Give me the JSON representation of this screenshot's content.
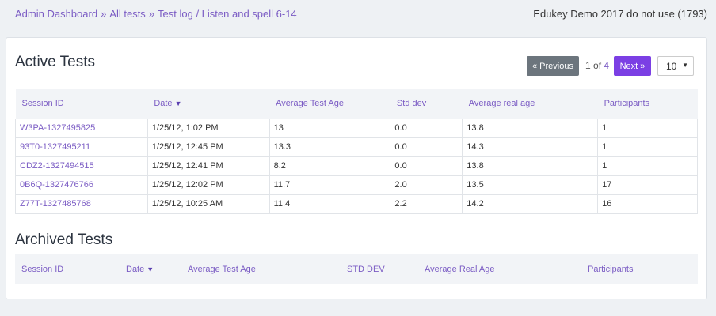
{
  "breadcrumb": {
    "items": [
      "Admin Dashboard",
      "All tests",
      "Test log / Listen and spell 6-14"
    ],
    "separator": "»"
  },
  "org": "Edukey Demo 2017 do not use (1793)",
  "active": {
    "heading": "Active Tests",
    "pager": {
      "prev_label": "« Previous",
      "current": "1",
      "of": " of ",
      "total": "4",
      "next_label": "Next »"
    },
    "page_size": "10",
    "columns": [
      "Session ID",
      "Date",
      "Average Test Age",
      "Std dev",
      "Average real age",
      "Participants"
    ],
    "rows": [
      [
        "W3PA-1327495825",
        "1/25/12, 1:02 PM",
        "13",
        "0.0",
        "13.8",
        "1"
      ],
      [
        "93T0-1327495211",
        "1/25/12, 12:45 PM",
        "13.3",
        "0.0",
        "14.3",
        "1"
      ],
      [
        "CDZ2-1327494515",
        "1/25/12, 12:41 PM",
        "8.2",
        "0.0",
        "13.8",
        "1"
      ],
      [
        "0B6Q-1327476766",
        "1/25/12, 12:02 PM",
        "11.7",
        "2.0",
        "13.5",
        "17"
      ],
      [
        "Z77T-1327485768",
        "1/25/12, 10:25 AM",
        "11.4",
        "2.2",
        "14.2",
        "16"
      ]
    ]
  },
  "archived": {
    "heading": "Archived Tests",
    "columns": [
      "Session ID",
      "Date",
      "Average Test Age",
      "STD DEV",
      "Average Real Age",
      "Participants"
    ]
  },
  "colors": {
    "accent": "#7b3fe4",
    "link": "#7b5cc4",
    "muted_button": "#6c757d"
  },
  "icons": {
    "sort": "sort-desc-icon",
    "dropdown": "chevron-down-icon"
  }
}
